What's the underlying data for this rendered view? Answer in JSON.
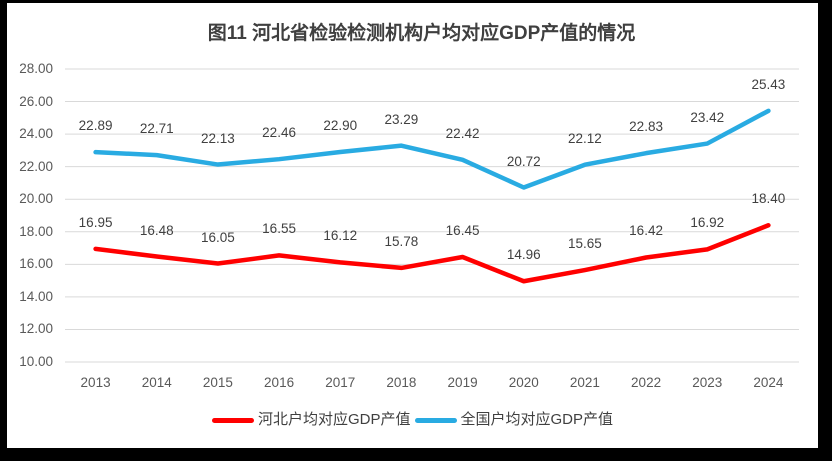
{
  "title": "图11 河北省检验检测机构户均对应GDP产值的情况",
  "chart_data": {
    "type": "line",
    "title": "图11 河北省检验检测机构户均对应GDP产值的情况",
    "categories": [
      "2013",
      "2014",
      "2015",
      "2016",
      "2017",
      "2018",
      "2019",
      "2020",
      "2021",
      "2022",
      "2023",
      "2024"
    ],
    "series": [
      {
        "name": "河北户均对应GDP产值",
        "color": "#FF0000",
        "values": [
          16.95,
          16.48,
          16.05,
          16.55,
          16.12,
          15.78,
          16.45,
          14.96,
          15.65,
          16.42,
          16.92,
          18.4
        ]
      },
      {
        "name": "全国户均对应GDP产值",
        "color": "#29ABE2",
        "values": [
          22.89,
          22.71,
          22.13,
          22.46,
          22.9,
          23.29,
          22.42,
          20.72,
          22.12,
          22.83,
          23.42,
          25.43
        ]
      }
    ],
    "xlabel": "",
    "ylabel": "",
    "ylim": [
      10,
      28
    ],
    "ytick_step": 2,
    "ytick_format": "2dp",
    "grid": true,
    "legend_position": "bottom",
    "data_labels": "above"
  },
  "colors": {
    "frame": "#000000",
    "chart_bg": "#FFFFFF",
    "gridline": "#D9D9D9",
    "tick_label": "#595959",
    "data_label": "#404040",
    "title_text": "#3F3F3F"
  }
}
